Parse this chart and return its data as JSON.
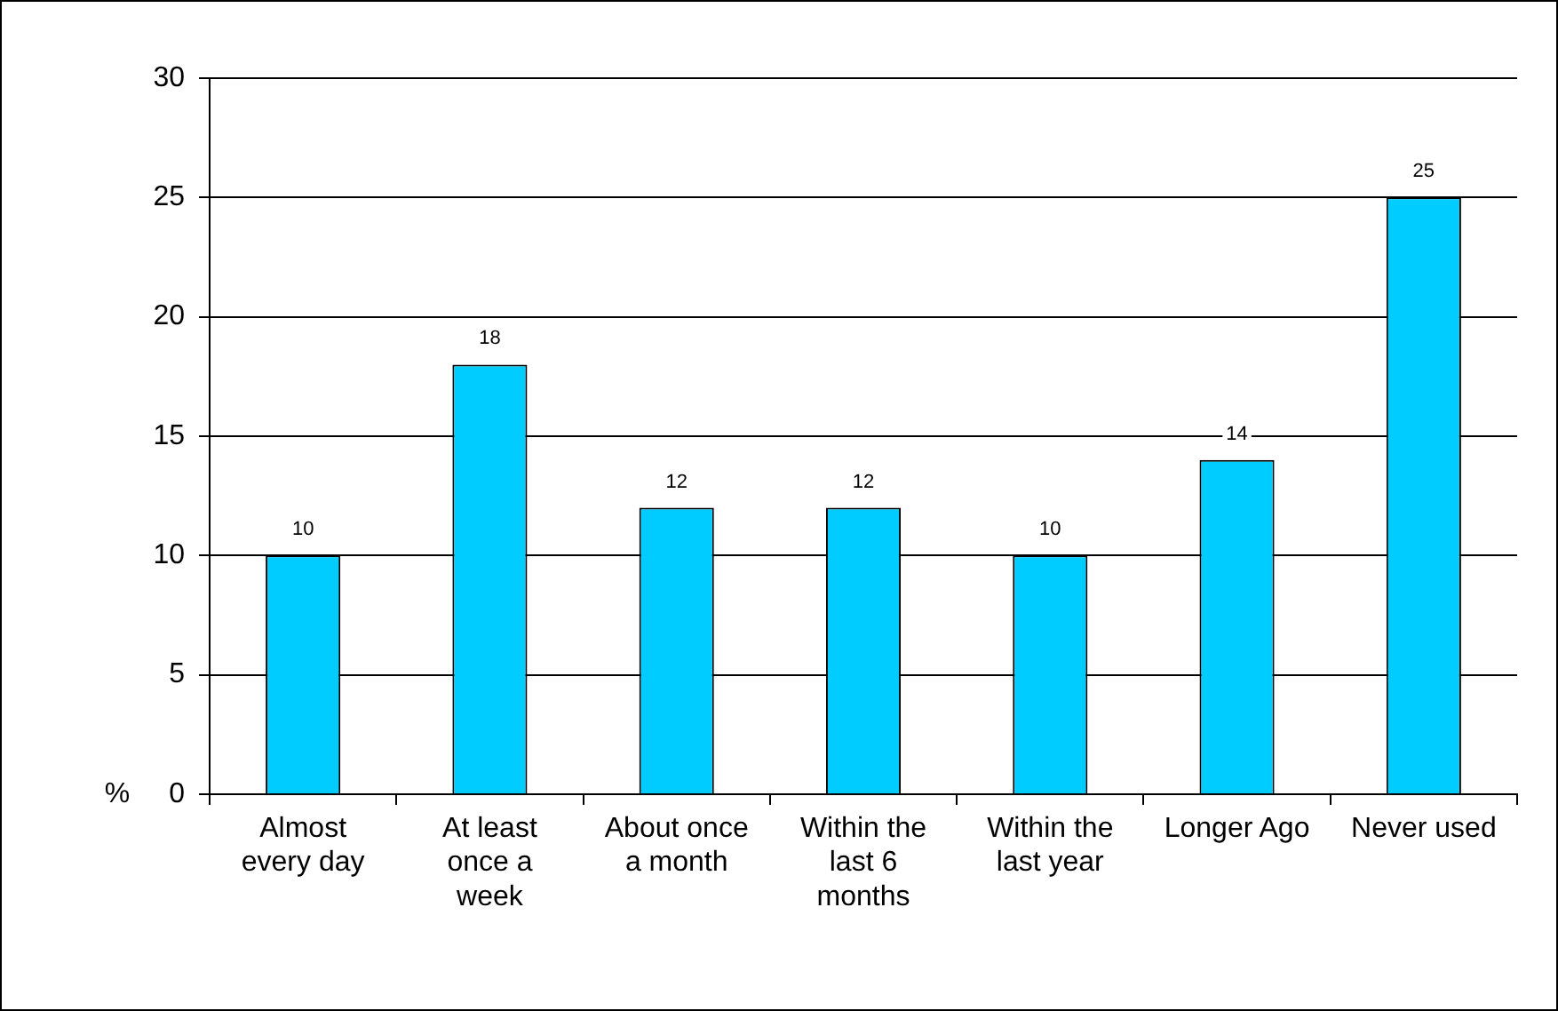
{
  "chart_data": {
    "type": "bar",
    "ylabel": "%",
    "categories": [
      "Almost every day",
      "At least once a week",
      "About once a month",
      "Within the last 6 months",
      "Within the last year",
      "Longer Ago",
      "Never used"
    ],
    "values": [
      10,
      18,
      12,
      12,
      10,
      14,
      25
    ],
    "color": "#00ccff",
    "ylim": [
      0,
      30
    ],
    "yticks": [
      0,
      5,
      10,
      15,
      20,
      25,
      30
    ],
    "grid": "y",
    "data_labels": true
  }
}
